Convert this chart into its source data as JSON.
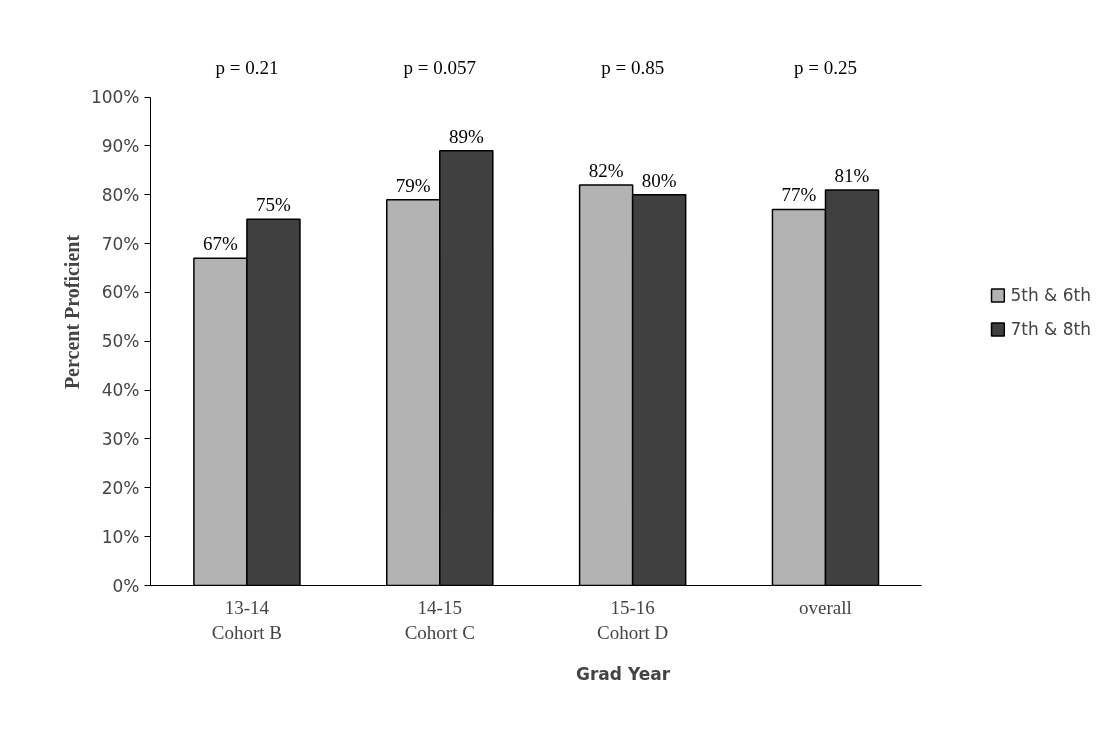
{
  "chart_data": {
    "type": "bar",
    "xlabel": "Grad Year",
    "ylabel": "Percent Proficient",
    "categories": [
      "13-14\nCohort B",
      "14-15\nCohort C",
      "15-16\nCohort D",
      "overall"
    ],
    "series": [
      {
        "name": "5th & 6th",
        "color": "#b3b3b3",
        "values": [
          67,
          79,
          82,
          77
        ],
        "value_labels": [
          "67%",
          "79%",
          "82%",
          "77%"
        ]
      },
      {
        "name": "7th & 8th",
        "color": "#404040",
        "values": [
          75,
          89,
          80,
          81
        ],
        "value_labels": [
          "75%",
          "89%",
          "80%",
          "81%"
        ]
      }
    ],
    "ylim": [
      0,
      100
    ],
    "yticks": [
      {
        "value": 0,
        "label": "0%"
      },
      {
        "value": 10,
        "label": "10%"
      },
      {
        "value": 20,
        "label": "20%"
      },
      {
        "value": 30,
        "label": "30%"
      },
      {
        "value": 40,
        "label": "40%"
      },
      {
        "value": 50,
        "label": "50%"
      },
      {
        "value": 60,
        "label": "60%"
      },
      {
        "value": 70,
        "label": "70%"
      },
      {
        "value": 80,
        "label": "80%"
      },
      {
        "value": 90,
        "label": "90%"
      },
      {
        "value": 100,
        "label": "100%"
      }
    ],
    "annotations": [
      "p = 0.21",
      "p = 0.057",
      "p = 0.85",
      "p = 0.25"
    ],
    "legend": "right"
  }
}
